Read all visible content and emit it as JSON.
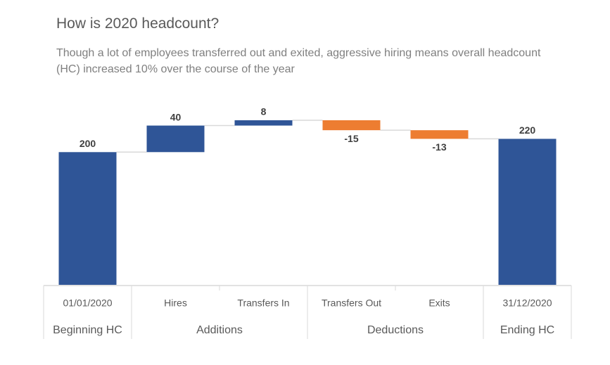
{
  "chart_data": {
    "type": "waterfall",
    "title": "How is 2020 headcount?",
    "subtitle": "Though a lot of employees transferred out and exited, aggressive hiring means overall headcount (HC) increased 10% over the course of the year",
    "categories": [
      "01/01/2020",
      "Hires",
      "Transfers In",
      "Transfers Out",
      "Exits",
      "31/12/2020"
    ],
    "category_groups": [
      "Beginning HC",
      "Additions",
      "Additions",
      "Deductions",
      "Deductions",
      "Ending HC"
    ],
    "values": [
      200,
      40,
      8,
      -15,
      -13,
      220
    ],
    "is_total": [
      true,
      false,
      false,
      false,
      false,
      true
    ],
    "colors": {
      "increase": "#2f5597",
      "decrease": "#ed7d31",
      "total": "#2f5597"
    }
  }
}
